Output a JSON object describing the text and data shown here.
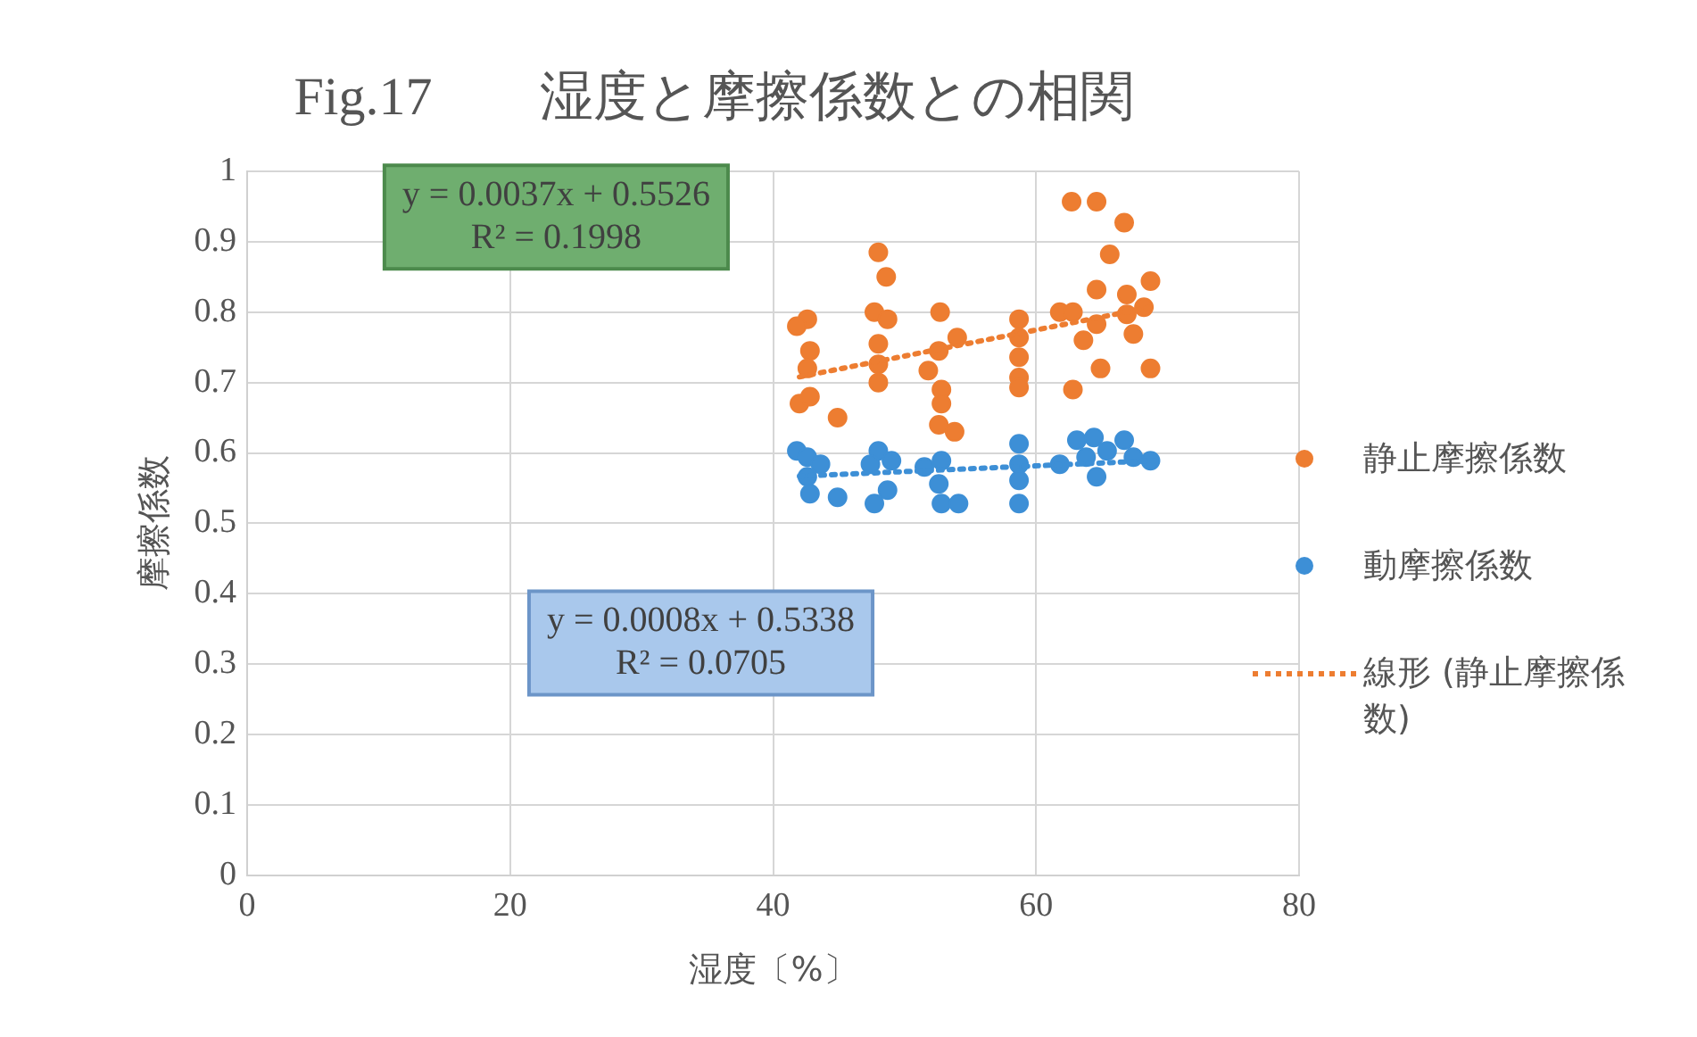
{
  "chart_data": {
    "type": "scatter",
    "title": "Fig.17　　湿度と摩擦係数との相関",
    "xlabel": "湿度〔%〕",
    "ylabel": "摩擦係数",
    "xlim": [
      0,
      80
    ],
    "xticks": [
      0,
      20,
      40,
      60,
      80
    ],
    "ylim": [
      0,
      1
    ],
    "yticks": [
      0,
      0.1,
      0.2,
      0.3,
      0.4,
      0.5,
      0.6,
      0.7,
      0.8,
      0.9,
      1
    ],
    "grid": true,
    "legend": "right",
    "marker": "circle",
    "annotations": [
      "y = 0.0037x + 0.5526\nR² = 0.1998",
      "y = 0.0008x + 0.5338\nR² = 0.0705"
    ],
    "series": [
      {
        "name": "静止摩擦係数",
        "type": "scatter",
        "color": "#ed7d31",
        "x": [
          42.6,
          41.8,
          42.8,
          42.6,
          42,
          42.8,
          44.9,
          48,
          48.6,
          47.7,
          48.7,
          48,
          48,
          48,
          52.7,
          52.6,
          51.8,
          52.8,
          52.8,
          52.6,
          53.8,
          54,
          58.7,
          58.7,
          58.7,
          58.7,
          58.7,
          62.7,
          64.6,
          66.7,
          65.6,
          68.7,
          64.6,
          61.8,
          62.8,
          66.9,
          66.9,
          68.2,
          64.6,
          63.6,
          67.4,
          64.9,
          68.7,
          62.8
        ],
        "values": [
          0.79,
          0.78,
          0.745,
          0.72,
          0.67,
          0.68,
          0.65,
          0.885,
          0.85,
          0.8,
          0.79,
          0.755,
          0.726,
          0.7,
          0.8,
          0.745,
          0.717,
          0.69,
          0.67,
          0.64,
          0.63,
          0.764,
          0.79,
          0.764,
          0.736,
          0.707,
          0.693,
          0.957,
          0.957,
          0.927,
          0.882,
          0.844,
          0.832,
          0.8,
          0.8,
          0.825,
          0.797,
          0.807,
          0.783,
          0.76,
          0.769,
          0.72,
          0.72,
          0.69
        ]
      },
      {
        "name": "動摩擦係数",
        "type": "scatter",
        "color": "#3d8fd6",
        "x": [
          41.8,
          42.6,
          43.6,
          42.6,
          42.8,
          44.9,
          48,
          49,
          47.4,
          48.7,
          47.7,
          51.5,
          52.8,
          52.6,
          52.8,
          54.1,
          58.7,
          58.7,
          58.7,
          58.7,
          61.8,
          63.1,
          64.4,
          63.8,
          65.4,
          64.6,
          66.7,
          67.4,
          68.7
        ],
        "values": [
          0.603,
          0.594,
          0.584,
          0.566,
          0.542,
          0.537,
          0.603,
          0.589,
          0.584,
          0.547,
          0.528,
          0.58,
          0.589,
          0.556,
          0.528,
          0.528,
          0.613,
          0.584,
          0.561,
          0.528,
          0.584,
          0.618,
          0.622,
          0.594,
          0.603,
          0.566,
          0.618,
          0.594,
          0.589
        ]
      },
      {
        "name": "線形 (静止摩擦係数)",
        "type": "line",
        "color": "#ed7d31",
        "line_style": "dotted",
        "marker": "none",
        "x": [
          42,
          69
        ],
        "values": [
          0.708,
          0.808
        ]
      },
      {
        "type": "line",
        "color": "#3d8fd6",
        "line_style": "dotted",
        "marker": "none",
        "x": [
          42,
          69
        ],
        "values": [
          0.567,
          0.589
        ]
      }
    ]
  }
}
